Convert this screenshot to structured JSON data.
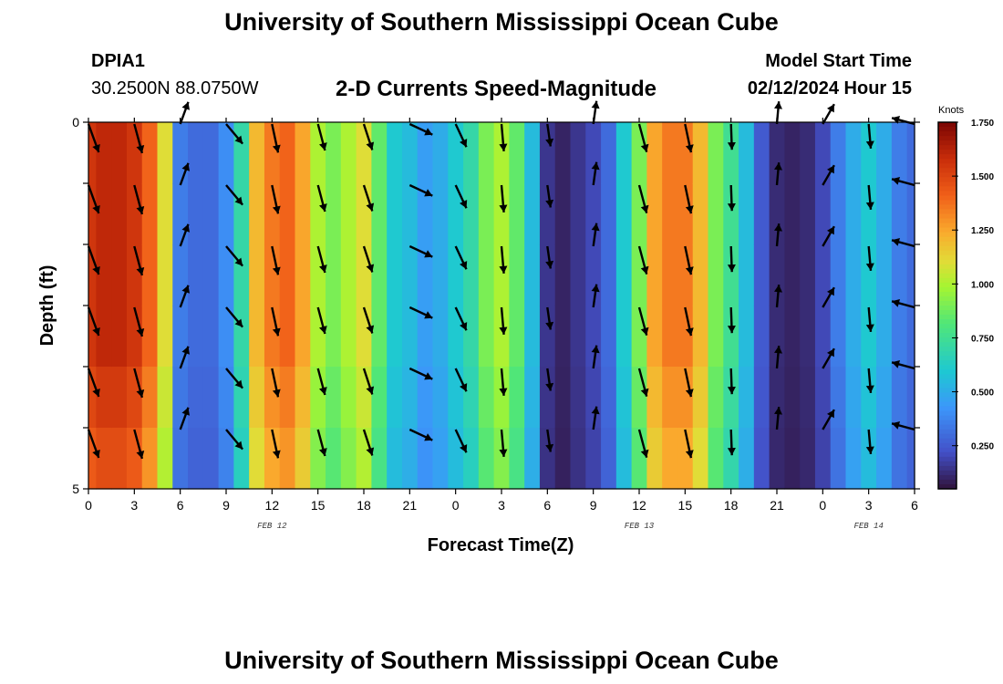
{
  "page": {
    "title_top": "University of Southern Mississippi Ocean Cube",
    "title_bottom": "University of Southern Mississippi Ocean Cube",
    "station_id": "DPIA1",
    "station_coords": "30.2500N  88.0750W",
    "chart_heading": "2-D Currents Speed-Magnitude",
    "model_start_label": "Model Start Time",
    "model_start_value": "02/12/2024 Hour 15"
  },
  "chart_data": {
    "type": "heatmap",
    "title": "2-D Currents Speed-Magnitude",
    "xlabel": "Forecast Time(Z)",
    "ylabel": "Depth (ft)",
    "colorbar_label": "Knots",
    "x_tick_labels": [
      "0",
      "3",
      "6",
      "9",
      "12",
      "15",
      "18",
      "21",
      "0",
      "3",
      "6",
      "9",
      "12",
      "15",
      "18",
      "21",
      "0",
      "3",
      "6"
    ],
    "x_hours": [
      0,
      3,
      6,
      9,
      12,
      15,
      18,
      21,
      24,
      27,
      30,
      33,
      36,
      39,
      42,
      45,
      48,
      51,
      54
    ],
    "date_labels": [
      {
        "hour": 12,
        "text": "FEB 12"
      },
      {
        "hour": 36,
        "text": "FEB 13"
      },
      {
        "hour": 51,
        "text": "FEB 14"
      }
    ],
    "y_tick_labels": [
      "0",
      "5"
    ],
    "ylim": [
      0,
      5
    ],
    "colorbar_range": [
      0.05,
      1.75
    ],
    "colorbar_ticks": [
      "0.250",
      "0.500",
      "0.750",
      "1.000",
      "1.250",
      "1.500",
      "1.750"
    ],
    "colorbar_tick_values": [
      0.25,
      0.5,
      0.75,
      1.0,
      1.25,
      1.5,
      1.75
    ],
    "time_hours": [
      0,
      1,
      2,
      3,
      4,
      5,
      6,
      7,
      8,
      9,
      10,
      11,
      12,
      13,
      14,
      15,
      16,
      17,
      18,
      19,
      20,
      21,
      22,
      23,
      24,
      25,
      26,
      27,
      28,
      29,
      30,
      31,
      32,
      33,
      34,
      35,
      36,
      37,
      38,
      39,
      40,
      41,
      42,
      43,
      44,
      45,
      46,
      47,
      48,
      49,
      50,
      51,
      52,
      53,
      54
    ],
    "speed_knots_surface": [
      1.55,
      1.6,
      1.6,
      1.55,
      1.4,
      1.1,
      0.35,
      0.3,
      0.3,
      0.4,
      0.7,
      1.2,
      1.35,
      1.4,
      1.25,
      1.0,
      0.9,
      1.0,
      1.1,
      0.85,
      0.6,
      0.55,
      0.45,
      0.5,
      0.6,
      0.7,
      0.9,
      1.0,
      0.85,
      0.55,
      0.15,
      0.1,
      0.15,
      0.2,
      0.3,
      0.6,
      0.9,
      1.25,
      1.35,
      1.35,
      1.2,
      0.9,
      0.75,
      0.55,
      0.25,
      0.12,
      0.1,
      0.12,
      0.2,
      0.35,
      0.5,
      0.6,
      0.5,
      0.35,
      0.3
    ],
    "layer_factors": [
      1.0,
      1.0,
      1.0,
      1.0,
      0.96,
      0.92
    ],
    "vectors": [
      {
        "hour": 0,
        "dir_deg": 160,
        "speed": 1.5
      },
      {
        "hour": 3,
        "dir_deg": 165,
        "speed": 1.5
      },
      {
        "hour": 6,
        "dir_deg": 20,
        "speed": 0.3
      },
      {
        "hour": 9,
        "dir_deg": 140,
        "speed": 0.7
      },
      {
        "hour": 12,
        "dir_deg": 168,
        "speed": 1.35
      },
      {
        "hour": 15,
        "dir_deg": 165,
        "speed": 1.0
      },
      {
        "hour": 18,
        "dir_deg": 162,
        "speed": 1.0
      },
      {
        "hour": 21,
        "dir_deg": 115,
        "speed": 0.6
      },
      {
        "hour": 24,
        "dir_deg": 155,
        "speed": 0.65
      },
      {
        "hour": 27,
        "dir_deg": 175,
        "speed": 1.0
      },
      {
        "hour": 30,
        "dir_deg": 172,
        "speed": 0.12
      },
      {
        "hour": 33,
        "dir_deg": 8,
        "speed": 0.25
      },
      {
        "hour": 36,
        "dir_deg": 165,
        "speed": 1.3
      },
      {
        "hour": 39,
        "dir_deg": 168,
        "speed": 1.3
      },
      {
        "hour": 42,
        "dir_deg": 178,
        "speed": 0.7
      },
      {
        "hour": 45,
        "dir_deg": 5,
        "speed": 0.15
      },
      {
        "hour": 48,
        "dir_deg": 30,
        "speed": 0.2
      },
      {
        "hour": 51,
        "dir_deg": 175,
        "speed": 0.5
      },
      {
        "hour": 54,
        "dir_deg": 285,
        "speed": 0.3
      }
    ]
  }
}
